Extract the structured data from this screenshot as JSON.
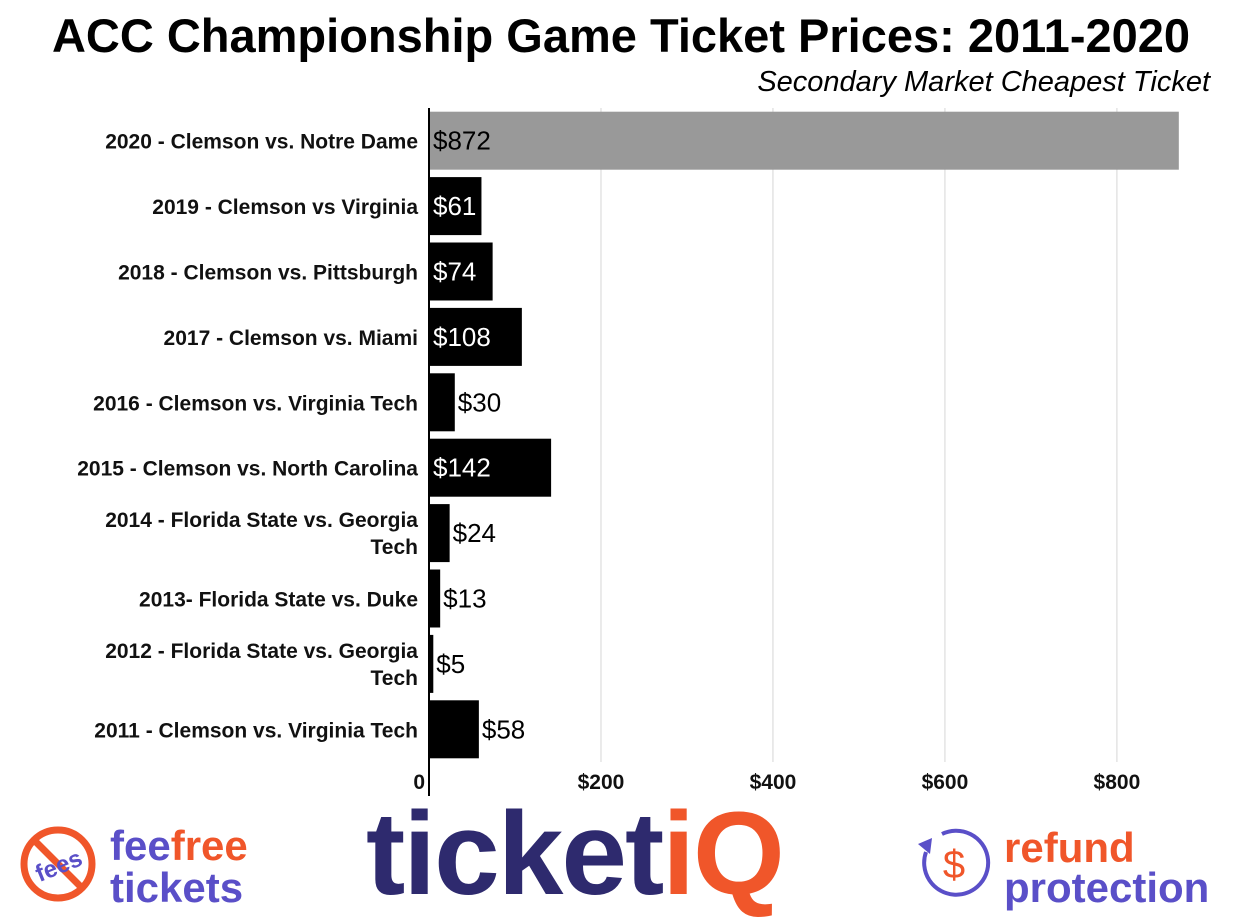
{
  "chart_data": {
    "type": "bar",
    "orientation": "horizontal",
    "title": "ACC Championship Game Ticket Prices: 2011-2020",
    "subtitle": "Secondary Market Cheapest Ticket",
    "categories": [
      "2020 - Clemson vs. Notre Dame",
      "2019 - Clemson vs Virginia",
      "2018 - Clemson vs. Pittsburgh",
      "2017 - Clemson vs. Miami",
      "2016 - Clemson vs. Virginia Tech",
      "2015 - Clemson vs. North Carolina",
      "2014 - Florida State vs. Georgia Tech",
      "2013- Florida State vs. Duke",
      "2012 - Florida State vs. Georgia Tech",
      "2011 - Clemson vs. Virginia Tech"
    ],
    "values": [
      872,
      61,
      74,
      108,
      30,
      142,
      24,
      13,
      5,
      58
    ],
    "value_labels": [
      "$872",
      "$61",
      "$74",
      "$108",
      "$30",
      "$142",
      "$24",
      "$13",
      "$5",
      "$58"
    ],
    "bar_colors": [
      "#999999",
      "#000000",
      "#000000",
      "#000000",
      "#000000",
      "#000000",
      "#000000",
      "#000000",
      "#000000",
      "#000000"
    ],
    "xlim": [
      0,
      885
    ],
    "xticks": [
      0,
      200,
      400,
      600,
      800
    ],
    "xtick_labels": [
      "0",
      "$200",
      "$400",
      "$600",
      "$800"
    ],
    "grid": "vertical"
  },
  "footer": {
    "fee_badge": {
      "icon": "no-fees-icon",
      "icon_text": "fees",
      "line1a": "fee",
      "line1b": "free",
      "line2": "tickets"
    },
    "logo": {
      "main": "ticket",
      "accent": "iQ"
    },
    "refund_badge": {
      "icon": "refund-dollar-icon",
      "icon_text": "$",
      "line1": "refund",
      "line2": "protection"
    },
    "colors": {
      "purple": "#5a4fc8",
      "orange": "#f0562a",
      "navy": "#2e2a6e"
    }
  }
}
